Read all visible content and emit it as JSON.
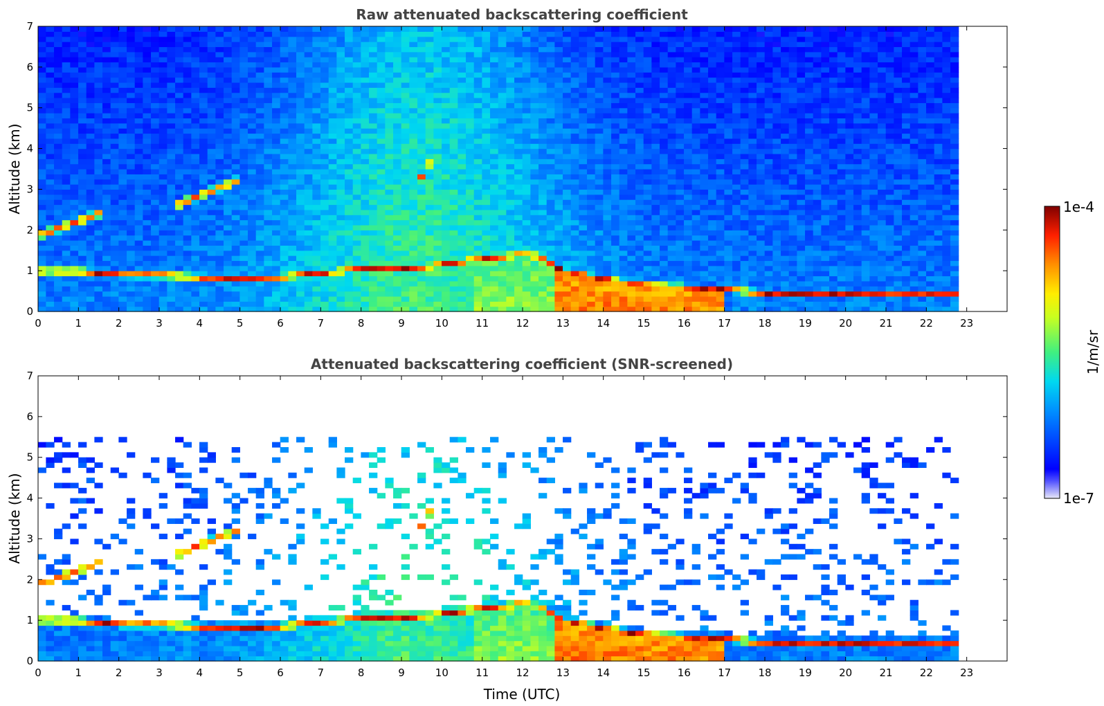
{
  "figure": {
    "xlabel": "Time (UTC)"
  },
  "chart_data": [
    {
      "type": "heatmap",
      "title": "Raw attenuated backscattering coefficient",
      "xlabel": "",
      "ylabel": "Altitude (km)",
      "xlim": [
        0,
        24
      ],
      "ylim": [
        0,
        7
      ],
      "xticks": [
        "0",
        "1",
        "2",
        "3",
        "4",
        "5",
        "6",
        "7",
        "8",
        "9",
        "10",
        "11",
        "12",
        "13",
        "14",
        "15",
        "16",
        "17",
        "18",
        "19",
        "20",
        "21",
        "22",
        "23"
      ],
      "yticks": [
        "0",
        "1",
        "2",
        "3",
        "4",
        "5",
        "6",
        "7"
      ],
      "data_end_time": 22.8,
      "screened": false,
      "boundary_layer_top_km": {
        "x": [
          0,
          1,
          2,
          3,
          4,
          5,
          6,
          7,
          8,
          9,
          10,
          11,
          12,
          12.5,
          13,
          14,
          15,
          16,
          17,
          18,
          19,
          20,
          21,
          22,
          22.8
        ],
        "y": [
          1.0,
          1.0,
          0.9,
          0.9,
          0.85,
          0.8,
          0.85,
          0.95,
          1.05,
          1.05,
          1.15,
          1.3,
          1.4,
          1.35,
          1.0,
          0.8,
          0.65,
          0.6,
          0.55,
          0.45,
          0.45,
          0.45,
          0.42,
          0.42,
          0.42
        ]
      },
      "aerosol_layers": [
        {
          "x_start": 0.1,
          "x_end": 1.5,
          "alt_start_km": 1.9,
          "alt_end_km": 2.4
        },
        {
          "x_start": 3.4,
          "x_end": 4.9,
          "alt_start_km": 2.6,
          "alt_end_km": 3.2
        },
        {
          "x_start": 9.5,
          "x_end": 9.8,
          "alt_start_km": 3.3,
          "alt_end_km": 3.8
        }
      ]
    },
    {
      "type": "heatmap",
      "title": "Attenuated backscattering coefficient (SNR-screened)",
      "xlabel": "Time (UTC)",
      "ylabel": "Altitude (km)",
      "xlim": [
        0,
        24
      ],
      "ylim": [
        0,
        7
      ],
      "xticks": [
        "0",
        "1",
        "2",
        "3",
        "4",
        "5",
        "6",
        "7",
        "8",
        "9",
        "10",
        "11",
        "12",
        "13",
        "14",
        "15",
        "16",
        "17",
        "18",
        "19",
        "20",
        "21",
        "22",
        "23"
      ],
      "yticks": [
        "0",
        "1",
        "2",
        "3",
        "4",
        "5",
        "6",
        "7"
      ],
      "data_end_time": 22.8,
      "screened": true
    }
  ],
  "colorbar": {
    "label": "1/m/sr",
    "max_label": "1e-4",
    "min_label": "1e-7",
    "scale": "log",
    "range": [
      1e-07,
      0.0001
    ],
    "colors": [
      "#e8e8f8",
      "#0000ff",
      "#00bfff",
      "#00e0c0",
      "#7fff00",
      "#ffff00",
      "#ff8c00",
      "#ff2000",
      "#7f0000"
    ]
  }
}
